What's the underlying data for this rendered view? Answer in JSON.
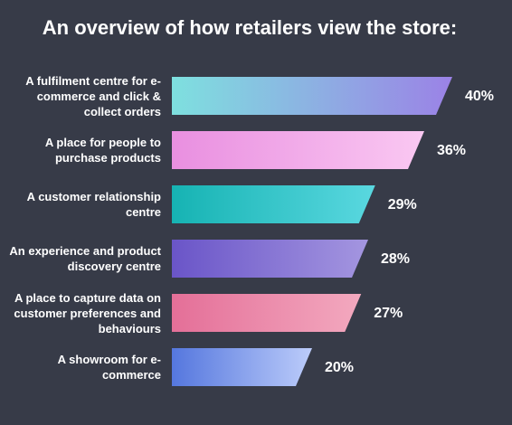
{
  "chart_data": {
    "type": "bar",
    "orientation": "horizontal",
    "title": "An overview of how retailers view the store:",
    "categories": [
      "A fulfilment centre for e-commerce and click & collect orders",
      "A place for people to purchase products",
      "A customer relationship centre",
      "An experience and product discovery centre",
      "A place to capture data on customer preferences and behaviours",
      "A showroom for e-commerce"
    ],
    "values": [
      40,
      36,
      29,
      28,
      27,
      20
    ],
    "value_labels": [
      "40%",
      "36%",
      "29%",
      "28%",
      "27%",
      "20%"
    ],
    "colors": [
      [
        "#7ee0df",
        "#9b82e6"
      ],
      [
        "#e98fe0",
        "#fac8f2"
      ],
      [
        "#16b3b3",
        "#5ad8e0"
      ],
      [
        "#6a55c8",
        "#a496e0"
      ],
      [
        "#e46f98",
        "#f3a9bf"
      ],
      [
        "#5577de",
        "#bcccfa"
      ]
    ]
  }
}
